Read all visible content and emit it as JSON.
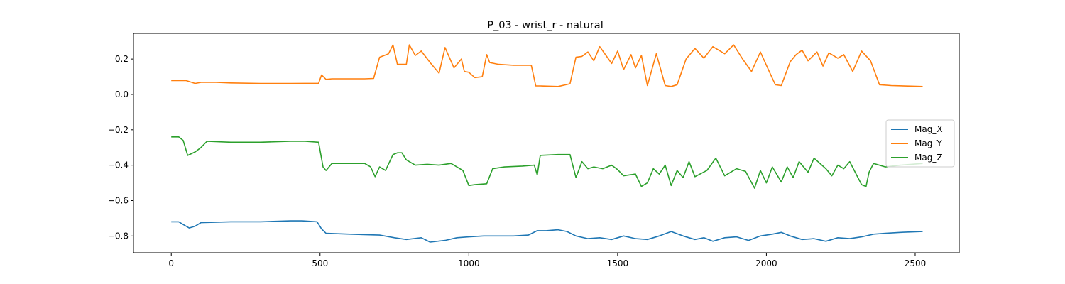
{
  "chart_data": {
    "type": "line",
    "title": "P_03 - wrist_r - natural",
    "xlabel": "",
    "ylabel": "",
    "xlim": [
      -127,
      2648
    ],
    "ylim": [
      -0.895,
      0.345
    ],
    "xticks": [
      0,
      500,
      1000,
      1500,
      2000,
      2500
    ],
    "yticks": [
      -0.8,
      -0.6,
      -0.4,
      -0.2,
      0.0,
      0.2
    ],
    "ytick_labels": [
      "−0.8",
      "−0.6",
      "−0.4",
      "−0.2",
      "0.0",
      "0.2"
    ],
    "grid": false,
    "legend": "center right",
    "series": [
      {
        "name": "Mag_X",
        "color": "#1f77b4",
        "x": [
          0,
          25,
          45,
          60,
          80,
          100,
          200,
          300,
          400,
          440,
          490,
          505,
          520,
          600,
          700,
          750,
          790,
          840,
          870,
          920,
          960,
          1000,
          1050,
          1100,
          1150,
          1200,
          1230,
          1260,
          1300,
          1330,
          1360,
          1400,
          1440,
          1480,
          1520,
          1560,
          1600,
          1640,
          1680,
          1720,
          1760,
          1790,
          1820,
          1860,
          1900,
          1940,
          1980,
          2020,
          2050,
          2080,
          2120,
          2160,
          2200,
          2240,
          2280,
          2320,
          2360,
          2400,
          2450,
          2525
        ],
        "y": [
          -0.72,
          -0.72,
          -0.74,
          -0.755,
          -0.745,
          -0.725,
          -0.72,
          -0.72,
          -0.715,
          -0.715,
          -0.72,
          -0.76,
          -0.785,
          -0.79,
          -0.795,
          -0.81,
          -0.82,
          -0.81,
          -0.835,
          -0.825,
          -0.81,
          -0.805,
          -0.8,
          -0.8,
          -0.8,
          -0.795,
          -0.77,
          -0.77,
          -0.765,
          -0.775,
          -0.8,
          -0.815,
          -0.81,
          -0.82,
          -0.8,
          -0.815,
          -0.82,
          -0.8,
          -0.775,
          -0.8,
          -0.82,
          -0.81,
          -0.83,
          -0.81,
          -0.805,
          -0.825,
          -0.8,
          -0.79,
          -0.78,
          -0.8,
          -0.82,
          -0.815,
          -0.83,
          -0.81,
          -0.815,
          -0.805,
          -0.79,
          -0.785,
          -0.78,
          -0.775
        ]
      },
      {
        "name": "Mag_Y",
        "color": "#ff7f0e",
        "x": [
          0,
          50,
          80,
          100,
          150,
          200,
          300,
          400,
          495,
          505,
          520,
          540,
          600,
          650,
          680,
          700,
          730,
          745,
          760,
          790,
          800,
          820,
          840,
          870,
          900,
          920,
          950,
          975,
          985,
          1000,
          1020,
          1045,
          1060,
          1070,
          1100,
          1150,
          1210,
          1225,
          1240,
          1300,
          1340,
          1360,
          1380,
          1400,
          1420,
          1440,
          1480,
          1500,
          1520,
          1545,
          1560,
          1580,
          1600,
          1630,
          1660,
          1680,
          1700,
          1730,
          1760,
          1790,
          1820,
          1860,
          1890,
          1920,
          1950,
          1980,
          2000,
          2030,
          2050,
          2080,
          2100,
          2120,
          2140,
          2170,
          2190,
          2210,
          2240,
          2260,
          2290,
          2320,
          2350,
          2380,
          2420,
          2525
        ],
        "y": [
          0.078,
          0.078,
          0.062,
          0.068,
          0.068,
          0.065,
          0.062,
          0.062,
          0.063,
          0.11,
          0.085,
          0.088,
          0.088,
          0.088,
          0.09,
          0.21,
          0.23,
          0.28,
          0.17,
          0.17,
          0.28,
          0.22,
          0.245,
          0.18,
          0.12,
          0.265,
          0.15,
          0.2,
          0.13,
          0.125,
          0.095,
          0.1,
          0.225,
          0.18,
          0.17,
          0.165,
          0.165,
          0.048,
          0.048,
          0.045,
          0.06,
          0.21,
          0.215,
          0.24,
          0.19,
          0.27,
          0.175,
          0.245,
          0.14,
          0.225,
          0.15,
          0.22,
          0.05,
          0.23,
          0.05,
          0.045,
          0.055,
          0.2,
          0.26,
          0.205,
          0.27,
          0.23,
          0.28,
          0.2,
          0.13,
          0.24,
          0.165,
          0.055,
          0.05,
          0.185,
          0.225,
          0.25,
          0.19,
          0.24,
          0.16,
          0.235,
          0.205,
          0.225,
          0.13,
          0.245,
          0.19,
          0.055,
          0.05,
          0.045
        ]
      },
      {
        "name": "Mag_Z",
        "color": "#2ca02c",
        "x": [
          0,
          25,
          40,
          55,
          80,
          100,
          120,
          200,
          300,
          400,
          450,
          495,
          510,
          520,
          540,
          600,
          650,
          670,
          685,
          700,
          720,
          745,
          760,
          775,
          790,
          820,
          860,
          900,
          940,
          980,
          1000,
          1020,
          1060,
          1080,
          1120,
          1180,
          1220,
          1230,
          1240,
          1300,
          1340,
          1360,
          1380,
          1400,
          1420,
          1450,
          1480,
          1500,
          1520,
          1560,
          1580,
          1600,
          1620,
          1640,
          1660,
          1680,
          1700,
          1720,
          1740,
          1760,
          1800,
          1830,
          1860,
          1900,
          1930,
          1960,
          1980,
          2000,
          2020,
          2050,
          2070,
          2090,
          2110,
          2140,
          2160,
          2200,
          2220,
          2240,
          2260,
          2280,
          2320,
          2335,
          2345,
          2360,
          2400,
          2450,
          2525
        ],
        "y": [
          -0.24,
          -0.24,
          -0.26,
          -0.345,
          -0.325,
          -0.3,
          -0.265,
          -0.27,
          -0.27,
          -0.265,
          -0.265,
          -0.27,
          -0.41,
          -0.43,
          -0.39,
          -0.39,
          -0.39,
          -0.41,
          -0.465,
          -0.41,
          -0.43,
          -0.34,
          -0.33,
          -0.33,
          -0.37,
          -0.4,
          -0.395,
          -0.4,
          -0.39,
          -0.43,
          -0.515,
          -0.51,
          -0.505,
          -0.42,
          -0.41,
          -0.405,
          -0.4,
          -0.455,
          -0.345,
          -0.34,
          -0.34,
          -0.47,
          -0.38,
          -0.42,
          -0.41,
          -0.42,
          -0.4,
          -0.425,
          -0.46,
          -0.45,
          -0.52,
          -0.5,
          -0.42,
          -0.45,
          -0.4,
          -0.515,
          -0.43,
          -0.47,
          -0.38,
          -0.465,
          -0.43,
          -0.36,
          -0.46,
          -0.42,
          -0.435,
          -0.53,
          -0.43,
          -0.5,
          -0.41,
          -0.495,
          -0.41,
          -0.47,
          -0.38,
          -0.44,
          -0.36,
          -0.42,
          -0.46,
          -0.4,
          -0.42,
          -0.38,
          -0.51,
          -0.52,
          -0.44,
          -0.39,
          -0.41,
          -0.4,
          -0.39
        ]
      }
    ]
  }
}
